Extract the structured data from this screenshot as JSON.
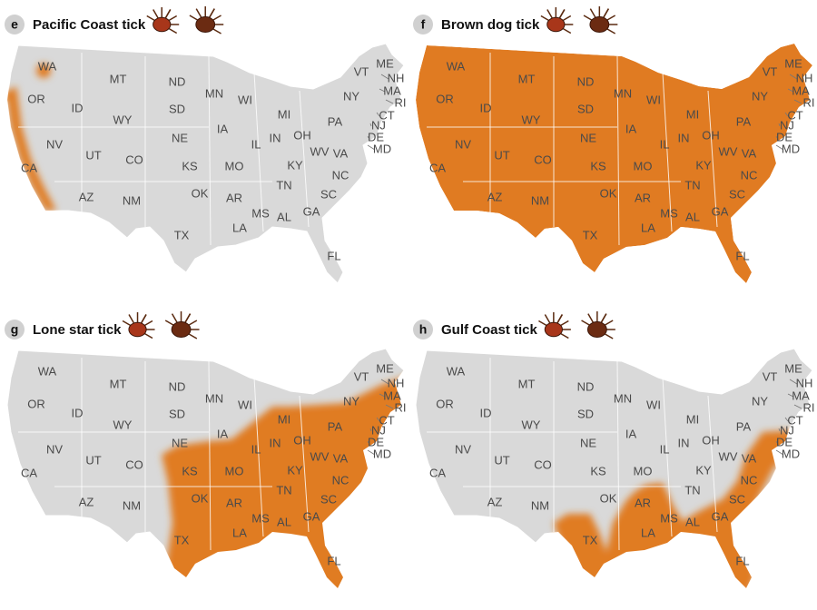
{
  "panels": [
    {
      "letter": "e",
      "title": "Pacific Coast tick"
    },
    {
      "letter": "f",
      "title": "Brown dog tick"
    },
    {
      "letter": "g",
      "title": "Lone star tick"
    },
    {
      "letter": "h",
      "title": "Gulf Coast tick"
    }
  ],
  "state_labels": [
    "WA",
    "OR",
    "ID",
    "MT",
    "WY",
    "NV",
    "UT",
    "CO",
    "CA",
    "AZ",
    "NM",
    "ND",
    "SD",
    "NE",
    "KS",
    "OK",
    "TX",
    "MN",
    "IA",
    "MO",
    "AR",
    "LA",
    "WI",
    "IL",
    "MS",
    "MI",
    "IN",
    "OH",
    "KY",
    "TN",
    "AL",
    "GA",
    "FL",
    "WV",
    "VA",
    "NC",
    "SC",
    "PA",
    "NY",
    "VT",
    "ME",
    "NH",
    "MA",
    "RI",
    "CT",
    "NJ",
    "DE",
    "MD"
  ]
}
